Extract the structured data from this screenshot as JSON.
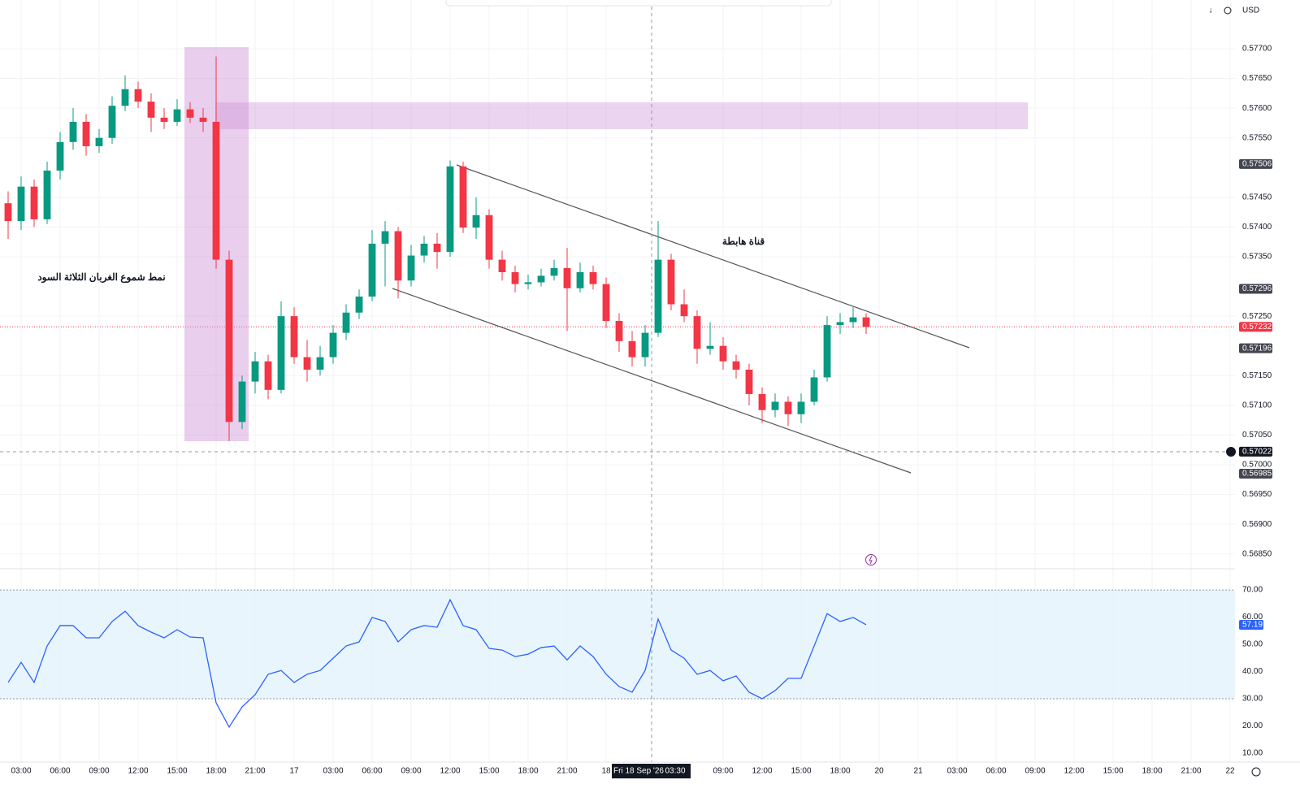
{
  "chart_data": {
    "type": "candlestick",
    "currency": "USD",
    "up_color": "#089981",
    "down_color": "#f23645",
    "grid": true,
    "xlim": [
      -1.625,
      93.375
    ],
    "ylim": [
      0.56825,
      0.57782
    ],
    "x": [
      -1,
      0,
      1,
      2,
      3,
      4,
      5,
      6,
      7,
      8,
      9,
      10,
      11,
      12,
      13,
      14,
      15,
      16,
      17,
      18,
      19,
      20,
      21,
      22,
      23,
      24,
      25,
      26,
      27,
      28,
      29,
      30,
      31,
      32,
      33,
      34,
      35,
      36,
      37,
      38,
      39,
      40,
      41,
      42,
      43,
      44,
      45,
      46,
      47,
      48,
      49,
      50,
      51,
      52,
      53,
      54,
      55,
      56,
      57,
      58,
      59,
      60,
      61,
      62,
      63,
      64,
      65
    ],
    "ohlc": [
      [
        0.5744,
        0.5746,
        0.5738,
        0.5741
      ],
      [
        0.5741,
        0.57485,
        0.57395,
        0.57468
      ],
      [
        0.57468,
        0.5748,
        0.574,
        0.57413
      ],
      [
        0.57413,
        0.5751,
        0.57405,
        0.57495
      ],
      [
        0.57495,
        0.5756,
        0.5748,
        0.57543
      ],
      [
        0.57543,
        0.576,
        0.5753,
        0.57577
      ],
      [
        0.57577,
        0.5759,
        0.5752,
        0.57536
      ],
      [
        0.57536,
        0.57565,
        0.57525,
        0.5755
      ],
      [
        0.5755,
        0.5762,
        0.5754,
        0.57604
      ],
      [
        0.57604,
        0.57655,
        0.57595,
        0.57632
      ],
      [
        0.57632,
        0.57645,
        0.576,
        0.57611
      ],
      [
        0.57611,
        0.57625,
        0.5756,
        0.57584
      ],
      [
        0.57584,
        0.576,
        0.57565,
        0.57577
      ],
      [
        0.57577,
        0.57615,
        0.5757,
        0.57598
      ],
      [
        0.57598,
        0.5761,
        0.57575,
        0.57584
      ],
      [
        0.57584,
        0.576,
        0.5756,
        0.57577
      ],
      [
        0.57577,
        0.57687,
        0.5733,
        0.57345
      ],
      [
        0.57345,
        0.5736,
        0.5704,
        0.57072
      ],
      [
        0.57072,
        0.5715,
        0.5706,
        0.5714
      ],
      [
        0.5714,
        0.5719,
        0.5712,
        0.57174
      ],
      [
        0.57174,
        0.57185,
        0.5711,
        0.57126
      ],
      [
        0.57126,
        0.57275,
        0.5712,
        0.5725
      ],
      [
        0.5725,
        0.57265,
        0.5717,
        0.57181
      ],
      [
        0.57181,
        0.5721,
        0.5714,
        0.5716
      ],
      [
        0.5716,
        0.572,
        0.5715,
        0.57181
      ],
      [
        0.57181,
        0.57235,
        0.5717,
        0.57222
      ],
      [
        0.57222,
        0.5727,
        0.5721,
        0.57256
      ],
      [
        0.57256,
        0.57295,
        0.57245,
        0.57283
      ],
      [
        0.57283,
        0.57395,
        0.57275,
        0.57372
      ],
      [
        0.57372,
        0.5741,
        0.573,
        0.57393
      ],
      [
        0.57393,
        0.574,
        0.5728,
        0.5731
      ],
      [
        0.5731,
        0.5737,
        0.573,
        0.57352
      ],
      [
        0.57352,
        0.57385,
        0.5734,
        0.57372
      ],
      [
        0.57372,
        0.5739,
        0.5733,
        0.57358
      ],
      [
        0.57358,
        0.57512,
        0.5735,
        0.57502
      ],
      [
        0.57502,
        0.5751,
        0.5739,
        0.57399
      ],
      [
        0.57399,
        0.5745,
        0.5738,
        0.5742
      ],
      [
        0.5742,
        0.5743,
        0.5733,
        0.57345
      ],
      [
        0.57345,
        0.5736,
        0.5731,
        0.57324
      ],
      [
        0.57324,
        0.57335,
        0.5729,
        0.57304
      ],
      [
        0.57304,
        0.5732,
        0.57295,
        0.57307
      ],
      [
        0.57307,
        0.5733,
        0.573,
        0.57318
      ],
      [
        0.57318,
        0.57345,
        0.5731,
        0.57331
      ],
      [
        0.57331,
        0.57365,
        0.57225,
        0.57297
      ],
      [
        0.57297,
        0.5734,
        0.5729,
        0.57324
      ],
      [
        0.57324,
        0.57335,
        0.57295,
        0.57304
      ],
      [
        0.57304,
        0.57315,
        0.5723,
        0.57242
      ],
      [
        0.57242,
        0.57255,
        0.5719,
        0.57208
      ],
      [
        0.57208,
        0.57225,
        0.57165,
        0.57181
      ],
      [
        0.57181,
        0.57235,
        0.57165,
        0.57222
      ],
      [
        0.57222,
        0.5741,
        0.57215,
        0.57345
      ],
      [
        0.57345,
        0.57355,
        0.5726,
        0.5727
      ],
      [
        0.5727,
        0.57295,
        0.5724,
        0.5725
      ],
      [
        0.5725,
        0.5726,
        0.5717,
        0.57195
      ],
      [
        0.57195,
        0.5724,
        0.57185,
        0.572
      ],
      [
        0.572,
        0.57215,
        0.5716,
        0.57174
      ],
      [
        0.57174,
        0.57185,
        0.57145,
        0.5716
      ],
      [
        0.5716,
        0.5717,
        0.571,
        0.57119
      ],
      [
        0.57119,
        0.5713,
        0.5707,
        0.57092
      ],
      [
        0.57092,
        0.5712,
        0.5708,
        0.57106
      ],
      [
        0.57106,
        0.57115,
        0.57065,
        0.57085
      ],
      [
        0.57085,
        0.5712,
        0.5707,
        0.57106
      ],
      [
        0.57106,
        0.5716,
        0.571,
        0.57147
      ],
      [
        0.57147,
        0.5725,
        0.5714,
        0.57235
      ],
      [
        0.57235,
        0.57255,
        0.5722,
        0.5724
      ],
      [
        0.5724,
        0.57265,
        0.5723,
        0.57248
      ],
      [
        0.57248,
        0.57255,
        0.5722,
        0.57232
      ]
    ],
    "xticks": [
      {
        "value": 0,
        "label": "03:00"
      },
      {
        "value": 3,
        "label": "06:00"
      },
      {
        "value": 6,
        "label": "09:00"
      },
      {
        "value": 9,
        "label": "12:00"
      },
      {
        "value": 12,
        "label": "15:00"
      },
      {
        "value": 15,
        "label": "18:00"
      },
      {
        "value": 18,
        "label": "21:00"
      },
      {
        "value": 21,
        "label": "17"
      },
      {
        "value": 24,
        "label": "03:00"
      },
      {
        "value": 27,
        "label": "06:00"
      },
      {
        "value": 30,
        "label": "09:00"
      },
      {
        "value": 33,
        "label": "12:00"
      },
      {
        "value": 36,
        "label": "15:00"
      },
      {
        "value": 39,
        "label": "18:00"
      },
      {
        "value": 42,
        "label": "21:00"
      },
      {
        "value": 45,
        "label": "18"
      },
      {
        "value": 54,
        "label": "09:00"
      },
      {
        "value": 57,
        "label": "12:00"
      },
      {
        "value": 60,
        "label": "15:00"
      },
      {
        "value": 63,
        "label": "18:00"
      },
      {
        "value": 66,
        "label": "20"
      },
      {
        "value": 69,
        "label": "21"
      },
      {
        "value": 72,
        "label": "03:00"
      },
      {
        "value": 75,
        "label": "06:00"
      },
      {
        "value": 78,
        "label": "09:00"
      },
      {
        "value": 81,
        "label": "12:00"
      },
      {
        "value": 84,
        "label": "15:00"
      },
      {
        "value": 87,
        "label": "18:00"
      },
      {
        "value": 90,
        "label": "21:00"
      },
      {
        "value": 93,
        "label": "22"
      }
    ],
    "yticks": [
      {
        "value": 0.577,
        "label": "0.57700"
      },
      {
        "value": 0.5765,
        "label": "0.57650"
      },
      {
        "value": 0.576,
        "label": "0.57600"
      },
      {
        "value": 0.5755,
        "label": "0.57550"
      },
      {
        "value": 0.5745,
        "label": "0.57450"
      },
      {
        "value": 0.574,
        "label": "0.57400"
      },
      {
        "value": 0.5735,
        "label": "0.57350"
      },
      {
        "value": 0.5725,
        "label": "0.57250"
      },
      {
        "value": 0.5715,
        "label": "0.57150"
      },
      {
        "value": 0.571,
        "label": "0.57100"
      },
      {
        "value": 0.5705,
        "label": "0.57050"
      },
      {
        "value": 0.57,
        "label": "0.57000"
      },
      {
        "value": 0.5695,
        "label": "0.56950"
      },
      {
        "value": 0.569,
        "label": "0.56900"
      },
      {
        "value": 0.5685,
        "label": "0.56850"
      }
    ],
    "price_labels": [
      {
        "value": 0.57506,
        "label": "0.57506",
        "color": "#434651"
      },
      {
        "value": 0.57296,
        "label": "0.57296",
        "color": "#434651"
      },
      {
        "value": 0.57232,
        "label": "0.57232",
        "color": "#f23645"
      },
      {
        "value": 0.57196,
        "label": "0.57196",
        "color": "#434651"
      },
      {
        "value": 0.57022,
        "label": "0.57022",
        "color": "#131722"
      },
      {
        "value": 0.56985,
        "label": "0.56985",
        "color": "#434651"
      }
    ],
    "annotations": [
      "نمط شموع الغربان الثلاثة السود",
      "قناة هابطة"
    ],
    "crosshair_date": "Fri 18 Sep '26",
    "crosshair_time": "03:30",
    "rsi": {
      "type": "line",
      "color": "#2962ff",
      "ylim": [
        7.6,
        76.3
      ],
      "band": [
        30,
        70
      ],
      "band_color": "#e3f2fd",
      "yticks": [
        {
          "value": 70,
          "label": "70.00"
        },
        {
          "value": 60,
          "label": "60.00"
        },
        {
          "value": 50,
          "label": "50.00"
        },
        {
          "value": 40,
          "label": "40.00"
        },
        {
          "value": 30,
          "label": "30.00"
        },
        {
          "value": 20,
          "label": "20.00"
        },
        {
          "value": 10,
          "label": "10.00"
        }
      ],
      "values": [
        36,
        43.4,
        36,
        49.4,
        56.9,
        56.9,
        52.4,
        52.4,
        58.4,
        62.2,
        56.9,
        54.5,
        52.4,
        55.4,
        52.7,
        52.4,
        28.5,
        19.6,
        27,
        31.5,
        39,
        40.4,
        36,
        39,
        40.4,
        44.9,
        49.4,
        50.9,
        59.9,
        58.4,
        50.9,
        55.4,
        56.9,
        56.3,
        66.4,
        56.9,
        55.4,
        48.5,
        47.9,
        45.5,
        46.4,
        48.8,
        49.4,
        44.3,
        49.4,
        45.5,
        39,
        34.5,
        32.4,
        40.4,
        59.3,
        47.9,
        44.9,
        39,
        40.4,
        36.6,
        38.4,
        32.4,
        30,
        33,
        37.5,
        37.5,
        49.4,
        61.3,
        58.4,
        59.9,
        57.19
      ],
      "last_label": "57.19"
    }
  }
}
